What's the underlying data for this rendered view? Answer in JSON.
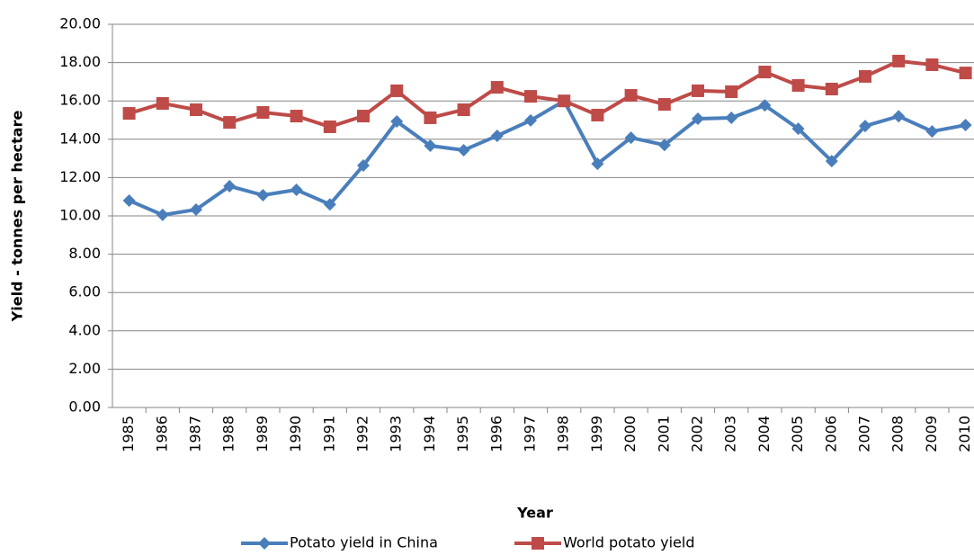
{
  "chart_data": {
    "type": "line",
    "x_label": "Year",
    "y_label": "Yield - tonnes per hectare",
    "categories": [
      "1985",
      "1986",
      "1987",
      "1988",
      "1989",
      "1990",
      "1991",
      "1992",
      "1993",
      "1994",
      "1995",
      "1996",
      "1997",
      "1998",
      "1999",
      "2000",
      "2001",
      "2002",
      "2003",
      "2004",
      "2005",
      "2006",
      "2007",
      "2008",
      "2009",
      "2010"
    ],
    "series": [
      {
        "name": "Potato yield in China",
        "color": "#4a7ebb",
        "marker": "diamond",
        "values": [
          10.8,
          10.05,
          10.33,
          11.55,
          11.08,
          11.36,
          10.6,
          12.63,
          14.93,
          13.66,
          13.43,
          14.18,
          14.98,
          16.0,
          12.72,
          14.08,
          13.7,
          15.07,
          15.12,
          15.77,
          14.55,
          12.86,
          14.69,
          15.2,
          14.41,
          14.74
        ]
      },
      {
        "name": "World potato yield",
        "color": "#be4b48",
        "marker": "square",
        "values": [
          15.35,
          15.87,
          15.54,
          14.88,
          15.4,
          15.21,
          14.65,
          15.21,
          16.53,
          15.12,
          15.54,
          16.71,
          16.24,
          16.0,
          15.26,
          16.29,
          15.82,
          16.53,
          16.48,
          17.51,
          16.81,
          16.62,
          17.28,
          18.08,
          17.89,
          17.46
        ]
      }
    ],
    "ylim": [
      0,
      20
    ],
    "yticks": [
      {
        "value": 0,
        "label": "0.00"
      },
      {
        "value": 2,
        "label": "2.00"
      },
      {
        "value": 4,
        "label": "4.00"
      },
      {
        "value": 6,
        "label": "6.00"
      },
      {
        "value": 8,
        "label": "8.00"
      },
      {
        "value": 10,
        "label": "10.00"
      },
      {
        "value": 12,
        "label": "12.00"
      },
      {
        "value": 14,
        "label": "14.00"
      },
      {
        "value": 16,
        "label": "16.00"
      },
      {
        "value": 18,
        "label": "18.00"
      },
      {
        "value": 20,
        "label": "20.00"
      }
    ],
    "grid": true,
    "legend": "bottom"
  }
}
